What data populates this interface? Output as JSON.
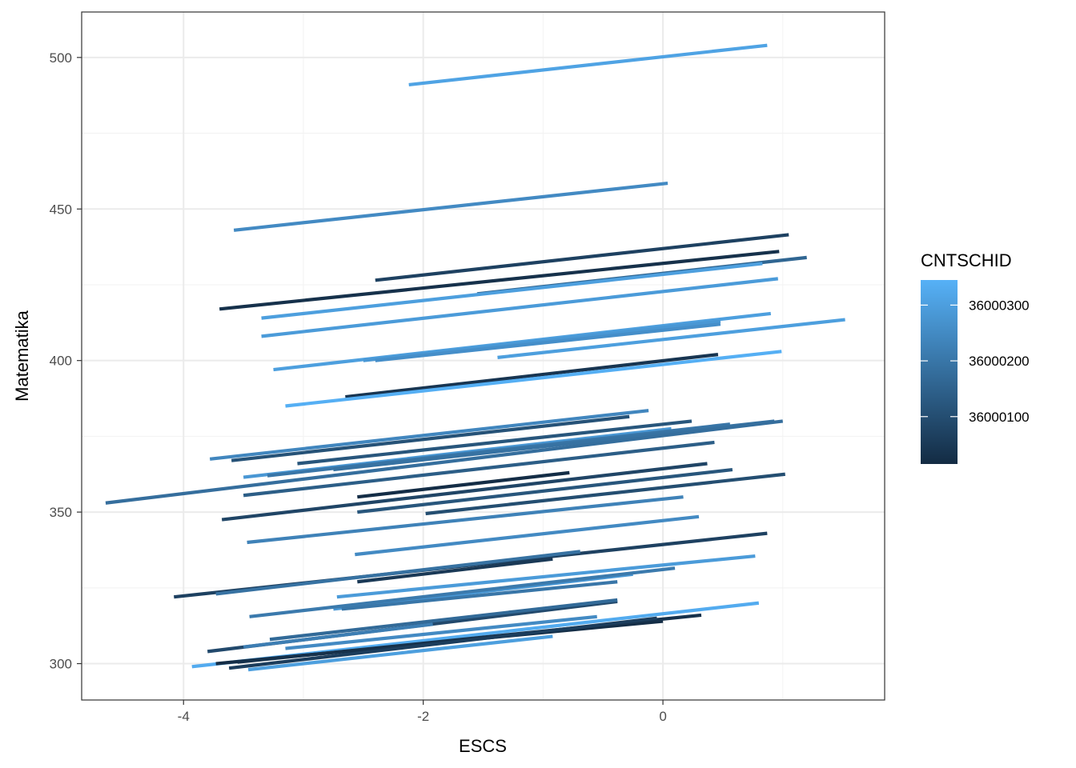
{
  "chart_data": {
    "type": "line",
    "xlabel": "ESCS",
    "ylabel": "Matematika",
    "xlim": [
      -4.85,
      1.85
    ],
    "ylim": [
      288,
      515
    ],
    "x_ticks": [
      -4,
      -2,
      0
    ],
    "x_tick_labels": [
      "-4",
      "-2",
      "0"
    ],
    "y_ticks": [
      300,
      350,
      400,
      450,
      500
    ],
    "y_tick_labels": [
      "300",
      "350",
      "400",
      "450",
      "500"
    ],
    "grid": true,
    "legend": {
      "title": "CNTSCHID",
      "placement": "right",
      "type": "colorbar",
      "range": [
        36000015,
        36000345
      ],
      "breaks": [
        36000100,
        36000200,
        36000300
      ],
      "break_labels": [
        "36000100",
        "36000200",
        "36000300"
      ],
      "low_color": "#132B43",
      "high_color": "#56B1F7"
    },
    "series": [
      {
        "x": [
          -2.12,
          0.87
        ],
        "y": [
          491.0,
          504.0
        ],
        "school": 36000310
      },
      {
        "x": [
          -3.58,
          0.04
        ],
        "y": [
          443.0,
          458.5
        ],
        "school": 36000250
      },
      {
        "x": [
          -2.4,
          1.05
        ],
        "y": [
          426.5,
          441.5
        ],
        "school": 36000070
      },
      {
        "x": [
          -3.7,
          0.97
        ],
        "y": [
          417.0,
          436.0
        ],
        "school": 36000030
      },
      {
        "x": [
          -1.55,
          1.2
        ],
        "y": [
          422.0,
          434.0
        ],
        "school": 36000160
      },
      {
        "x": [
          -3.35,
          0.83
        ],
        "y": [
          414.0,
          432.0
        ],
        "school": 36000300
      },
      {
        "x": [
          -3.35,
          0.96
        ],
        "y": [
          408.0,
          427.0
        ],
        "school": 36000290
      },
      {
        "x": [
          -3.25,
          0.9
        ],
        "y": [
          397.0,
          415.5
        ],
        "school": 36000300
      },
      {
        "x": [
          -2.5,
          0.48
        ],
        "y": [
          400.0,
          413.0
        ],
        "school": 36000280
      },
      {
        "x": [
          -2.4,
          0.48
        ],
        "y": [
          400.0,
          412.0
        ],
        "school": 36000260
      },
      {
        "x": [
          -1.38,
          1.52
        ],
        "y": [
          401.0,
          413.5
        ],
        "school": 36000300
      },
      {
        "x": [
          -2.65,
          0.46
        ],
        "y": [
          388.0,
          402.0
        ],
        "school": 36000040
      },
      {
        "x": [
          -3.15,
          0.99
        ],
        "y": [
          385.0,
          403.0
        ],
        "school": 36000340
      },
      {
        "x": [
          -3.78,
          -0.12
        ],
        "y": [
          367.5,
          383.5
        ],
        "school": 36000240
      },
      {
        "x": [
          -3.6,
          -0.28
        ],
        "y": [
          367.0,
          381.5
        ],
        "school": 36000110
      },
      {
        "x": [
          -3.05,
          0.24
        ],
        "y": [
          366.0,
          380.0
        ],
        "school": 36000120
      },
      {
        "x": [
          -3.5,
          0.07
        ],
        "y": [
          361.5,
          377.5
        ],
        "school": 36000280
      },
      {
        "x": [
          -3.3,
          0.56
        ],
        "y": [
          362.0,
          379.0
        ],
        "school": 36000200
      },
      {
        "x": [
          -2.75,
          0.93
        ],
        "y": [
          364.0,
          380.0
        ],
        "school": 36000190
      },
      {
        "x": [
          -3.5,
          0.43
        ],
        "y": [
          355.5,
          373.0
        ],
        "school": 36000140
      },
      {
        "x": [
          -4.65,
          1.0
        ],
        "y": [
          353.0,
          380.0
        ],
        "school": 36000180
      },
      {
        "x": [
          -2.55,
          -0.78
        ],
        "y": [
          355.0,
          363.0
        ],
        "school": 36000020
      },
      {
        "x": [
          -3.68,
          0.37
        ],
        "y": [
          347.5,
          366.0
        ],
        "school": 36000080
      },
      {
        "x": [
          -2.55,
          0.58
        ],
        "y": [
          350.0,
          364.0
        ],
        "school": 36000120
      },
      {
        "x": [
          -1.98,
          1.02
        ],
        "y": [
          349.5,
          362.5
        ],
        "school": 36000100
      },
      {
        "x": [
          -3.47,
          0.17
        ],
        "y": [
          340.0,
          355.0
        ],
        "school": 36000230
      },
      {
        "x": [
          -2.57,
          0.3
        ],
        "y": [
          336.0,
          348.5
        ],
        "school": 36000250
      },
      {
        "x": [
          -4.08,
          0.87
        ],
        "y": [
          322.0,
          343.0
        ],
        "school": 36000070
      },
      {
        "x": [
          -3.73,
          -0.69
        ],
        "y": [
          323.0,
          337.0
        ],
        "school": 36000190
      },
      {
        "x": [
          -2.55,
          -0.92
        ],
        "y": [
          327.0,
          334.5
        ],
        "school": 36000050
      },
      {
        "x": [
          -2.72,
          0.77
        ],
        "y": [
          322.0,
          335.5
        ],
        "school": 36000290
      },
      {
        "x": [
          -2.75,
          -0.25
        ],
        "y": [
          318.0,
          329.5
        ],
        "school": 36000280
      },
      {
        "x": [
          -2.68,
          -0.38
        ],
        "y": [
          318.0,
          327.0
        ],
        "school": 36000200
      },
      {
        "x": [
          -3.45,
          0.1
        ],
        "y": [
          315.5,
          331.5
        ],
        "school": 36000210
      },
      {
        "x": [
          -3.8,
          -0.38
        ],
        "y": [
          304.0,
          320.5
        ],
        "school": 36000090
      },
      {
        "x": [
          -3.28,
          -0.38
        ],
        "y": [
          308.0,
          321.0
        ],
        "school": 36000170
      },
      {
        "x": [
          -3.5,
          -1.92
        ],
        "y": [
          305.5,
          313.0
        ],
        "school": 36000220
      },
      {
        "x": [
          -3.15,
          -0.55
        ],
        "y": [
          305.0,
          315.5
        ],
        "school": 36000250
      },
      {
        "x": [
          -3.93,
          0.8
        ],
        "y": [
          299.0,
          320.0
        ],
        "school": 36000330
      },
      {
        "x": [
          -3.73,
          0.0
        ],
        "y": [
          300.0,
          314.0
        ],
        "school": 36000020
      },
      {
        "x": [
          -3.55,
          0.32
        ],
        "y": [
          300.5,
          316.0
        ],
        "school": 36000030
      },
      {
        "x": [
          -3.62,
          -0.05
        ],
        "y": [
          298.5,
          315.0
        ],
        "school": 36000060
      },
      {
        "x": [
          -3.46,
          -0.92
        ],
        "y": [
          298.0,
          309.0
        ],
        "school": 36000300
      }
    ]
  }
}
